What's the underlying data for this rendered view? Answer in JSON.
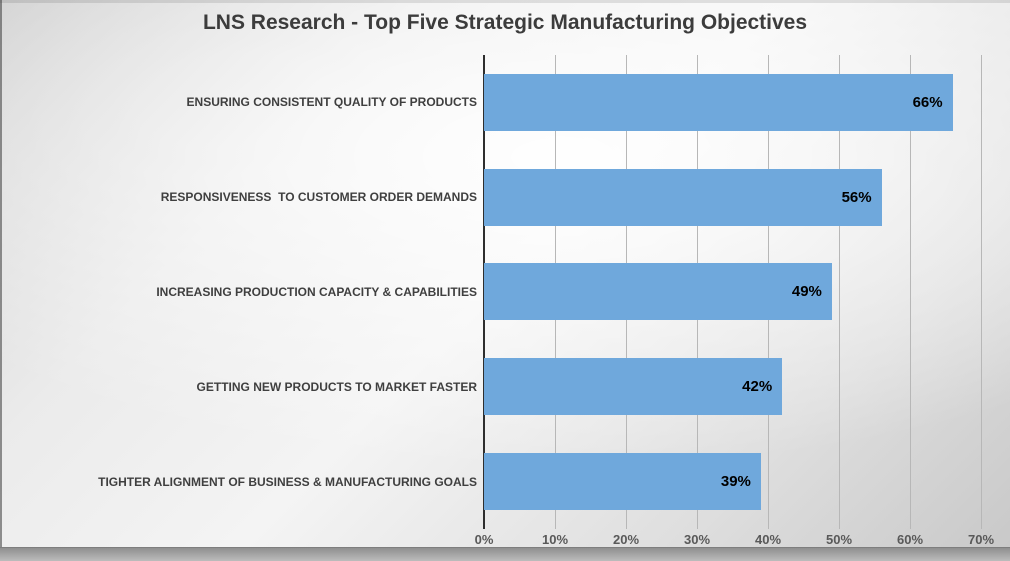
{
  "chart_data": {
    "type": "bar",
    "orientation": "horizontal",
    "title": "LNS Research - Top Five Strategic Manufacturing Objectives",
    "categories": [
      "ENSURING CONSISTENT QUALITY OF PRODUCTS",
      "RESPONSIVENESS  TO CUSTOMER ORDER DEMANDS",
      "INCREASING PRODUCTION CAPACITY & CAPABILITIES",
      "GETTING NEW PRODUCTS TO MARKET FASTER",
      "TIGHTER ALIGNMENT OF BUSINESS & MANUFACTURING GOALS"
    ],
    "values": [
      66,
      56,
      49,
      42,
      39
    ],
    "value_labels": [
      "66%",
      "56%",
      "49%",
      "42%",
      "39%"
    ],
    "xlabel": "",
    "ylabel": "",
    "xlim": [
      0,
      70
    ],
    "tick_values": [
      0,
      10,
      20,
      30,
      40,
      50,
      60,
      70
    ],
    "tick_labels": [
      "0%",
      "10%",
      "20%",
      "30%",
      "40%",
      "50%",
      "60%",
      "70%"
    ],
    "grid": "vertical-gridlines-on",
    "legend_position": "none"
  },
  "colors": {
    "bar": "#6FA8DC",
    "title_text": "#3c3c3c",
    "category_text": "#3f3f3f",
    "value_text": "#000000",
    "tick_text": "#595959",
    "gridline": "#b7b7b7",
    "axis_line": "#2e2e2e"
  }
}
